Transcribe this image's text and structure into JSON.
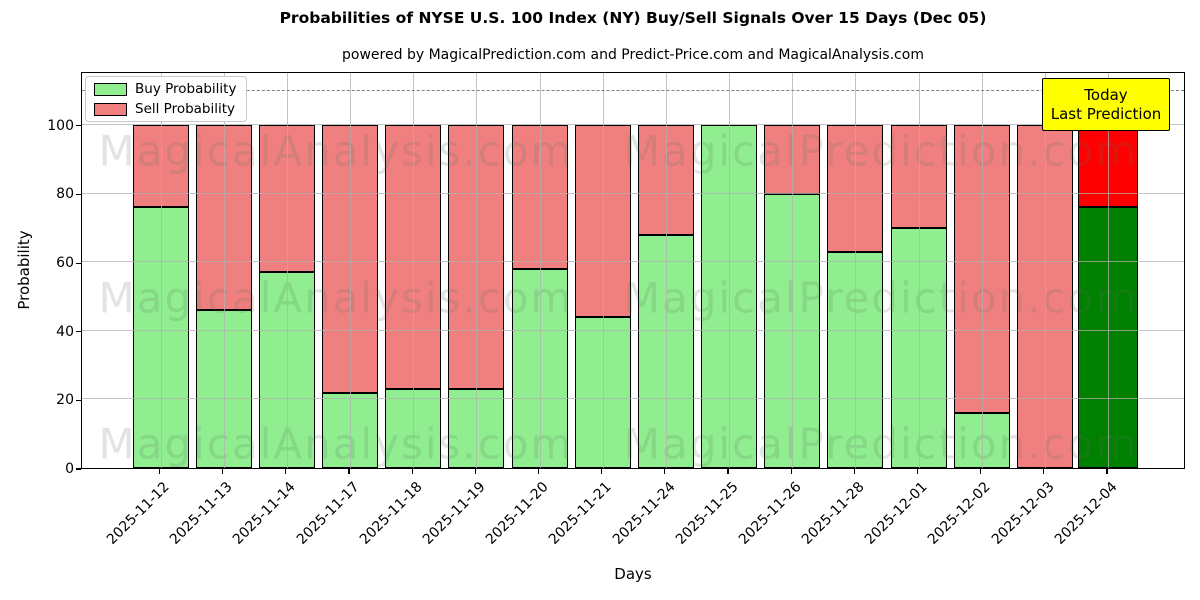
{
  "figure": {
    "title": "Probabilities of NYSE U.S. 100 Index (NY) Buy/Sell Signals Over 15 Days (Dec 05)",
    "subtitle": "powered by MagicalPrediction.com and Predict-Price.com and MagicalAnalysis.com"
  },
  "legend": {
    "items": [
      {
        "label": "Buy Probability",
        "color": "#90ee90"
      },
      {
        "label": "Sell Probability",
        "color": "#f08080"
      }
    ]
  },
  "annotation_box": {
    "line1": "Today",
    "line2": "Last Prediction",
    "bg": "#ffff00"
  },
  "watermarks": {
    "texts": [
      "MagicalAnalysis.com",
      "MagicalPrediction.com"
    ],
    "color": "rgba(90,110,90,0.18)"
  },
  "axes": {
    "x_label": "Days",
    "y_label": "Probability",
    "y_ticks": [
      0,
      20,
      40,
      60,
      80,
      100
    ],
    "dashed_line_y": 110,
    "y_max": 115.7
  },
  "colors": {
    "buy": "#90ee90",
    "sell": "#f08080",
    "today_buy": "#008000",
    "today_sell": "#ff0000",
    "edge": "#000000",
    "grid": "#b0b0b0",
    "dashed": "#7f7f7f"
  },
  "chart_data": {
    "type": "bar",
    "stacked": true,
    "title": "Probabilities of NYSE U.S. 100 Index (NY) Buy/Sell Signals Over 15 Days (Dec 05)",
    "subtitle": "powered by MagicalPrediction.com and Predict-Price.com and MagicalAnalysis.com",
    "xlabel": "Days",
    "ylabel": "Probability",
    "ylim": [
      0,
      116
    ],
    "grid": true,
    "legend_position": "upper left",
    "categories": [
      "2025-11-12",
      "2025-11-13",
      "2025-11-14",
      "2025-11-17",
      "2025-11-18",
      "2025-11-19",
      "2025-11-20",
      "2025-11-21",
      "2025-11-24",
      "2025-11-25",
      "2025-11-26",
      "2025-11-28",
      "2025-12-01",
      "2025-12-02",
      "2025-12-03",
      "2025-12-04"
    ],
    "series": [
      {
        "name": "Buy Probability",
        "values": [
          76,
          46,
          57,
          22,
          23,
          23,
          58,
          44,
          68,
          100,
          80,
          63,
          70,
          16,
          0,
          76
        ]
      },
      {
        "name": "Sell Probability",
        "values": [
          24,
          54,
          43,
          78,
          77,
          77,
          42,
          56,
          32,
          0,
          20,
          37,
          30,
          84,
          100,
          24
        ]
      }
    ],
    "today_index": 15,
    "reference_line": {
      "y": 110,
      "style": "dashed",
      "color": "#7f7f7f"
    },
    "annotations": [
      {
        "text": "Today / Last Prediction",
        "target": "2025-12-04"
      }
    ]
  }
}
